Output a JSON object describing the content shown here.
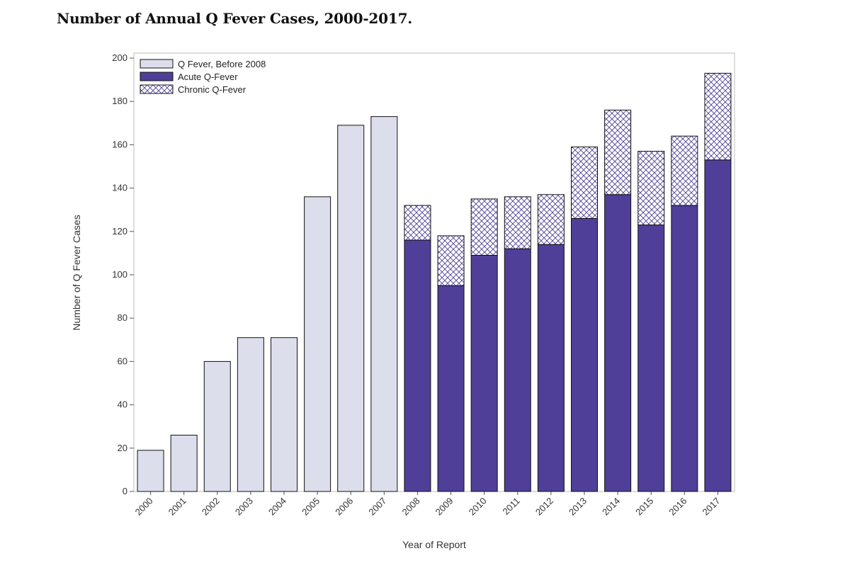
{
  "page": {
    "title": "Number of Annual Q Fever Cases, 2000-2017."
  },
  "chart_data": {
    "type": "bar",
    "stacked": true,
    "categories": [
      "2000",
      "2001",
      "2002",
      "2003",
      "2004",
      "2005",
      "2006",
      "2007",
      "2008",
      "2009",
      "2010",
      "2011",
      "2012",
      "2013",
      "2014",
      "2015",
      "2016",
      "2017"
    ],
    "series": [
      {
        "name": "Q Fever, Before 2008",
        "color": "#dcdeec",
        "pattern": "solid",
        "values": [
          19,
          26,
          60,
          71,
          71,
          136,
          169,
          173,
          0,
          0,
          0,
          0,
          0,
          0,
          0,
          0,
          0,
          0
        ]
      },
      {
        "name": "Acute Q-Fever",
        "color": "#4f3f99",
        "pattern": "solid",
        "values": [
          0,
          0,
          0,
          0,
          0,
          0,
          0,
          0,
          116,
          95,
          109,
          112,
          114,
          126,
          137,
          123,
          132,
          153
        ]
      },
      {
        "name": "Chronic Q-Fever",
        "color": "#4f3f99",
        "pattern": "crosshatch",
        "values": [
          0,
          0,
          0,
          0,
          0,
          0,
          0,
          0,
          16,
          23,
          26,
          24,
          23,
          33,
          39,
          34,
          32,
          40
        ]
      }
    ],
    "title": "Number of Annual Q Fever Cases, 2000-2017.",
    "xlabel": "Year of Report",
    "ylabel": "Number of Q Fever Cases",
    "ylim": [
      0,
      200
    ],
    "yticks": [
      0,
      20,
      40,
      60,
      80,
      100,
      120,
      140,
      160,
      180,
      200
    ],
    "grid": false,
    "legend_position": "top-left"
  }
}
